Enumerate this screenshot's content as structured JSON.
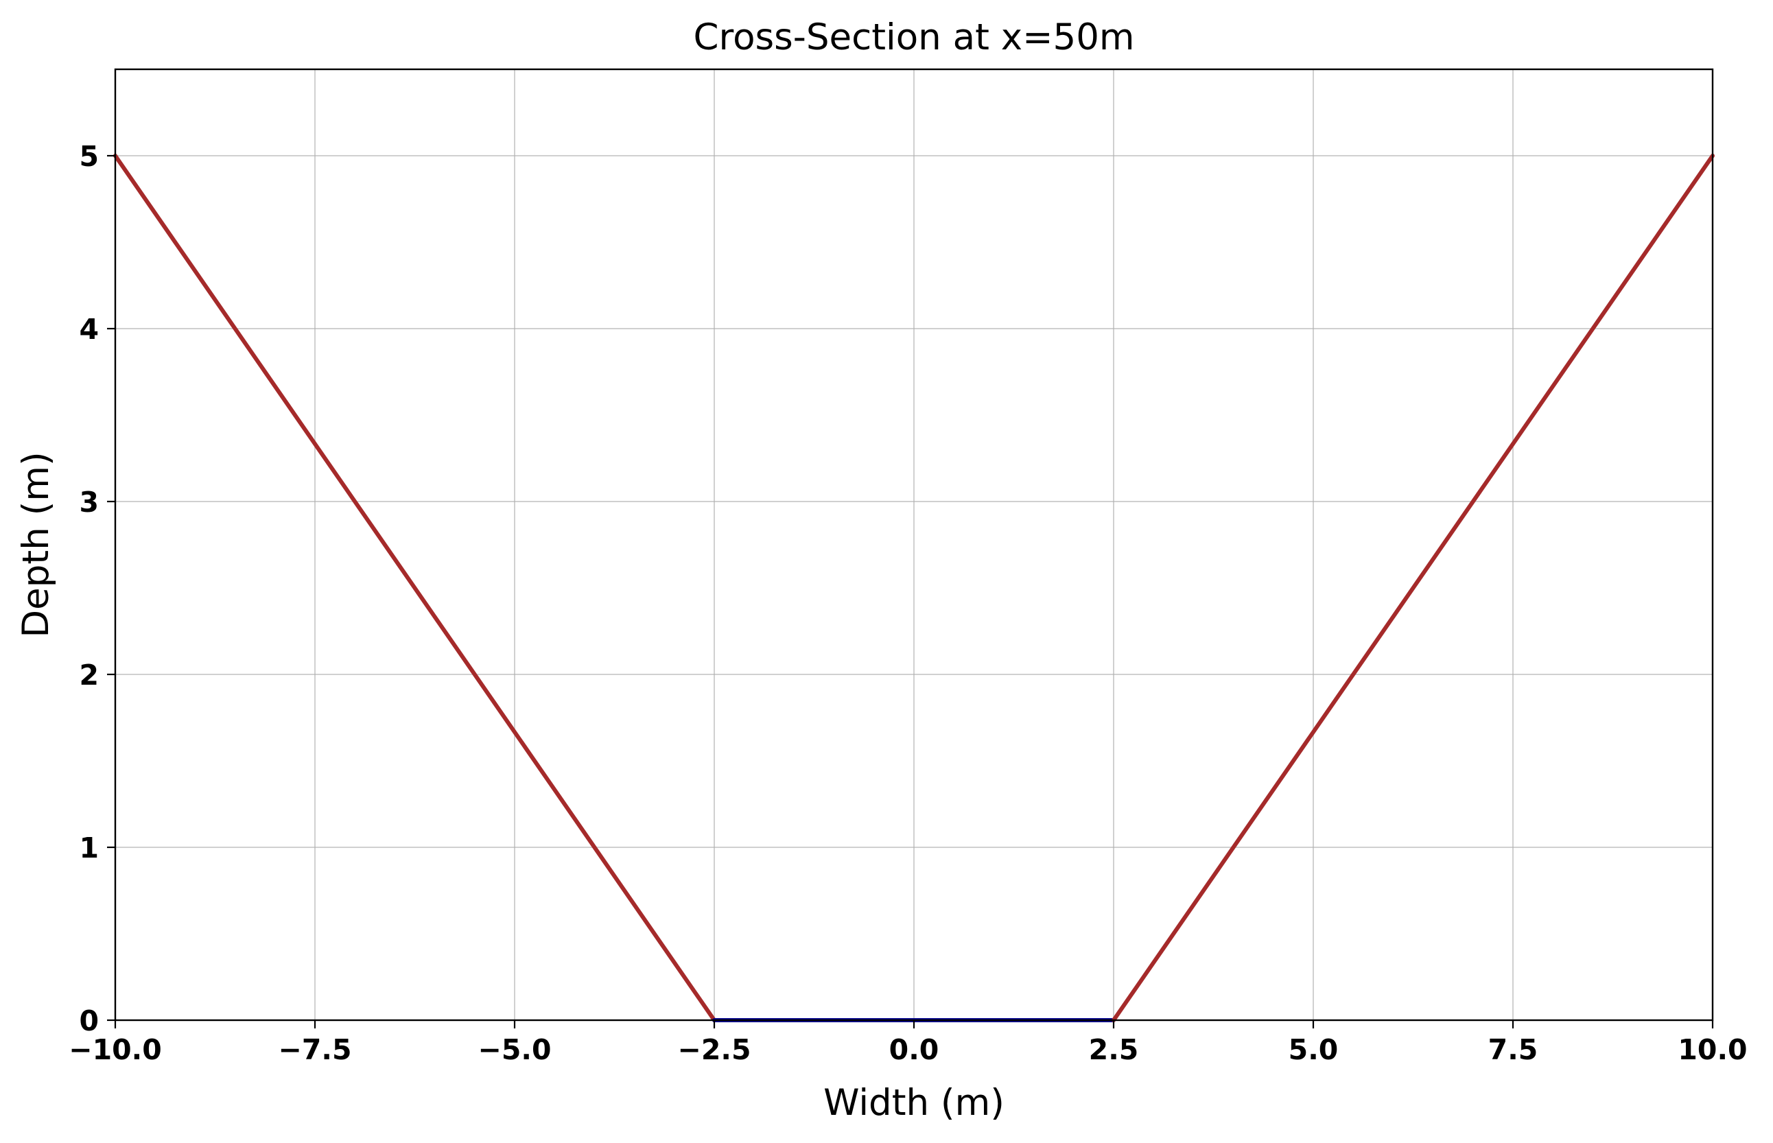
{
  "chart_data": {
    "type": "line",
    "title": "Cross-Section at x=50m",
    "xlabel": "Width (m)",
    "ylabel": "Depth (m)",
    "xlim": [
      -10.0,
      10.0
    ],
    "ylim": [
      0,
      5.5
    ],
    "x_ticks": [
      -10.0,
      -7.5,
      -5.0,
      -2.5,
      0.0,
      2.5,
      5.0,
      7.5,
      10.0
    ],
    "x_tick_labels": [
      "−10.0",
      "−7.5",
      "−5.0",
      "−2.5",
      "0.0",
      "2.5",
      "5.0",
      "7.5",
      "10.0"
    ],
    "y_ticks": [
      0,
      1,
      2,
      3,
      4,
      5
    ],
    "y_tick_labels": [
      "0",
      "1",
      "2",
      "3",
      "4",
      "5"
    ],
    "grid": true,
    "series": [
      {
        "color": "#a52a2a",
        "x": [
          -10.0,
          -2.5
        ],
        "y": [
          5.0,
          0.0
        ]
      },
      {
        "color": "#00008b",
        "x": [
          -2.5,
          2.5
        ],
        "y": [
          0.0,
          0.0
        ]
      },
      {
        "color": "#a52a2a",
        "x": [
          2.5,
          10.0
        ],
        "y": [
          0.0,
          5.0
        ]
      }
    ]
  }
}
